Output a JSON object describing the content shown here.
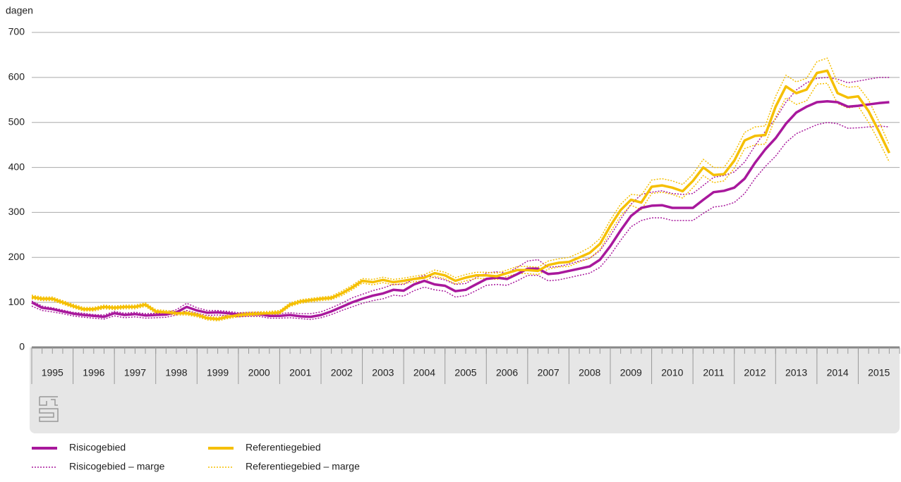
{
  "chart_data": {
    "type": "line",
    "y_label": "dagen",
    "x": [
      1995,
      1995.25,
      1995.5,
      1995.75,
      1996,
      1996.25,
      1996.5,
      1996.75,
      1997,
      1997.25,
      1997.5,
      1997.75,
      1998,
      1998.25,
      1998.5,
      1998.75,
      1999,
      1999.25,
      1999.5,
      1999.75,
      2000,
      2000.25,
      2000.5,
      2000.75,
      2001,
      2001.25,
      2001.5,
      2001.75,
      2002,
      2002.25,
      2002.5,
      2002.75,
      2003,
      2003.25,
      2003.5,
      2003.75,
      2004,
      2004.25,
      2004.5,
      2004.75,
      2005,
      2005.25,
      2005.5,
      2005.75,
      2006,
      2006.25,
      2006.5,
      2006.75,
      2007,
      2007.25,
      2007.5,
      2007.75,
      2008,
      2008.25,
      2008.5,
      2008.75,
      2009,
      2009.25,
      2009.5,
      2009.75,
      2010,
      2010.25,
      2010.5,
      2010.75,
      2011,
      2011.25,
      2011.5,
      2011.75,
      2012,
      2012.25,
      2012.5,
      2012.75,
      2013,
      2013.25,
      2013.5,
      2013.75,
      2014,
      2014.25,
      2014.5,
      2014.75,
      2015,
      2015.25,
      2015.5,
      2015.75
    ],
    "xlim": [
      1995,
      2016
    ],
    "xticks": [
      1995,
      1996,
      1997,
      1998,
      1999,
      2000,
      2001,
      2002,
      2003,
      2004,
      2005,
      2006,
      2007,
      2008,
      2009,
      2010,
      2011,
      2012,
      2013,
      2014,
      2015
    ],
    "ylim": [
      0,
      700
    ],
    "yticks": [
      0,
      100,
      200,
      300,
      400,
      500,
      600,
      700
    ],
    "grid": true,
    "series": [
      {
        "name": "Risicogebied",
        "color": "#a8189c",
        "style": "solid",
        "values": [
          100,
          88,
          85,
          80,
          75,
          72,
          70,
          68,
          76,
          72,
          74,
          71,
          72,
          73,
          78,
          90,
          82,
          77,
          78,
          76,
          73,
          74,
          74,
          70,
          70,
          72,
          69,
          68,
          72,
          80,
          90,
          100,
          108,
          115,
          120,
          128,
          126,
          140,
          148,
          140,
          137,
          125,
          128,
          140,
          152,
          155,
          152,
          163,
          175,
          175,
          163,
          165,
          170,
          175,
          180,
          195,
          225,
          260,
          292,
          310,
          315,
          316,
          310,
          310,
          310,
          328,
          345,
          348,
          355,
          375,
          410,
          440,
          465,
          497,
          522,
          535,
          545,
          547,
          545,
          535,
          537,
          540,
          543,
          545
        ]
      },
      {
        "name": "Referentiegebied",
        "color": "#f5bf00",
        "style": "solid",
        "values": [
          112,
          108,
          108,
          100,
          92,
          85,
          85,
          90,
          88,
          90,
          90,
          95,
          80,
          78,
          76,
          76,
          72,
          65,
          63,
          68,
          72,
          74,
          75,
          76,
          78,
          95,
          102,
          105,
          108,
          110,
          120,
          133,
          148,
          145,
          150,
          145,
          148,
          152,
          155,
          165,
          160,
          148,
          155,
          160,
          160,
          158,
          165,
          172,
          172,
          170,
          183,
          188,
          190,
          200,
          210,
          230,
          270,
          305,
          328,
          322,
          357,
          360,
          355,
          347,
          370,
          400,
          383,
          385,
          415,
          460,
          470,
          472,
          535,
          580,
          565,
          573,
          610,
          615,
          565,
          555,
          558,
          525,
          480,
          432
        ]
      },
      {
        "name": "Risicogebied – marge",
        "color": "#a8189c",
        "style": "dotted",
        "upper": [
          103,
          92,
          88,
          83,
          78,
          76,
          73,
          72,
          80,
          76,
          78,
          75,
          76,
          77,
          84,
          98,
          88,
          82,
          82,
          80,
          77,
          78,
          78,
          75,
          75,
          77,
          75,
          75,
          79,
          88,
          98,
          110,
          118,
          126,
          132,
          140,
          140,
          152,
          160,
          155,
          150,
          140,
          142,
          155,
          165,
          168,
          165,
          178,
          192,
          195,
          178,
          180,
          185,
          192,
          198,
          215,
          248,
          285,
          318,
          340,
          345,
          348,
          342,
          340,
          342,
          360,
          378,
          382,
          390,
          412,
          448,
          480,
          508,
          545,
          572,
          588,
          598,
          600,
          596,
          588,
          592,
          596,
          600,
          600
        ],
        "lower": [
          92,
          82,
          79,
          75,
          70,
          67,
          65,
          63,
          70,
          66,
          68,
          65,
          66,
          67,
          72,
          82,
          76,
          71,
          72,
          70,
          68,
          69,
          69,
          65,
          65,
          66,
          64,
          62,
          66,
          73,
          82,
          90,
          98,
          104,
          108,
          116,
          114,
          126,
          134,
          128,
          125,
          112,
          115,
          126,
          138,
          140,
          138,
          148,
          160,
          160,
          148,
          150,
          155,
          160,
          165,
          178,
          205,
          238,
          268,
          282,
          288,
          288,
          282,
          282,
          282,
          298,
          312,
          315,
          322,
          342,
          375,
          402,
          425,
          455,
          475,
          485,
          495,
          500,
          497,
          487,
          488,
          490,
          492,
          490
        ]
      },
      {
        "name": "Referentiegebied – marge",
        "color": "#f5bf00",
        "style": "dotted",
        "upper": [
          116,
          112,
          112,
          104,
          96,
          89,
          89,
          94,
          92,
          94,
          94,
          99,
          84,
          82,
          80,
          80,
          76,
          69,
          67,
          72,
          76,
          78,
          79,
          80,
          82,
          99,
          106,
          109,
          112,
          114,
          125,
          138,
          153,
          151,
          156,
          151,
          154,
          158,
          162,
          172,
          167,
          155,
          162,
          167,
          167,
          165,
          172,
          180,
          180,
          178,
          192,
          197,
          200,
          210,
          222,
          242,
          283,
          318,
          340,
          338,
          372,
          375,
          370,
          362,
          385,
          418,
          400,
          400,
          432,
          478,
          490,
          492,
          558,
          605,
          590,
          598,
          635,
          643,
          588,
          578,
          580,
          550,
          502,
          450
        ],
        "lower": [
          108,
          104,
          104,
          96,
          88,
          81,
          81,
          86,
          84,
          86,
          86,
          91,
          76,
          74,
          72,
          72,
          68,
          61,
          59,
          64,
          68,
          70,
          71,
          72,
          74,
          91,
          98,
          101,
          104,
          106,
          115,
          128,
          143,
          139,
          144,
          139,
          142,
          146,
          148,
          158,
          153,
          141,
          148,
          153,
          153,
          151,
          158,
          164,
          164,
          162,
          174,
          179,
          180,
          190,
          198,
          218,
          257,
          292,
          316,
          306,
          342,
          345,
          340,
          332,
          355,
          382,
          366,
          370,
          398,
          442,
          450,
          452,
          512,
          555,
          540,
          548,
          585,
          587,
          542,
          532,
          536,
          500,
          458,
          412
        ]
      }
    ]
  }
}
